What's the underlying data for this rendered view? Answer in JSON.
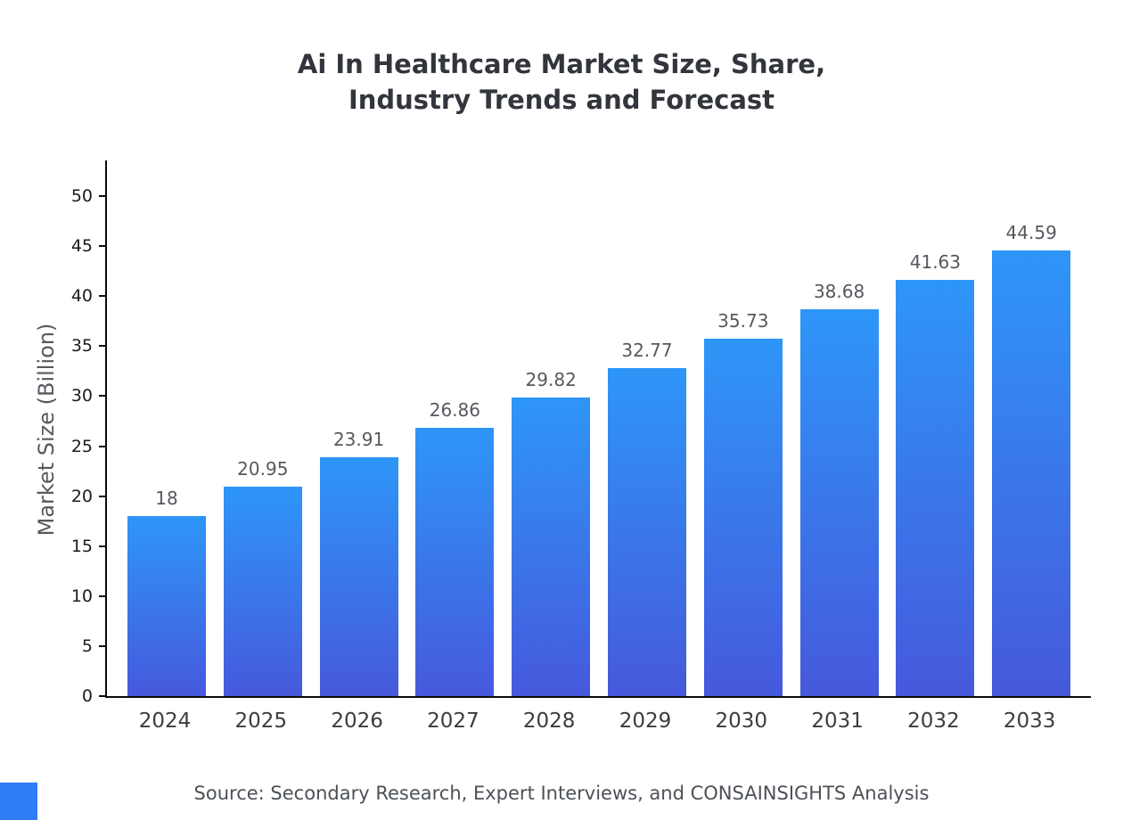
{
  "title": "Ai In Healthcare Market Size, Share,\nIndustry Trends and Forecast",
  "ylabel": "Market Size (Billion)",
  "source": "Source: Secondary Research, Expert Interviews, and CONSAINSIGHTS Analysis",
  "colors": {
    "bar_top": "#2e96f8",
    "bar_bottom": "#4659db",
    "brand_square": "#2e7cf6",
    "axis": "#0b0b0b"
  },
  "chart_data": {
    "type": "bar",
    "title": "Ai In Healthcare Market Size, Share, Industry Trends and Forecast",
    "categories": [
      "2024",
      "2025",
      "2026",
      "2027",
      "2028",
      "2029",
      "2030",
      "2031",
      "2032",
      "2033"
    ],
    "values": [
      18,
      20.95,
      23.91,
      26.86,
      29.82,
      32.77,
      35.73,
      38.68,
      41.63,
      44.59
    ],
    "value_labels": [
      "18",
      "20.95",
      "23.91",
      "26.86",
      "29.82",
      "32.77",
      "35.73",
      "38.68",
      "41.63",
      "44.59"
    ],
    "xlabel": "",
    "ylabel": "Market Size (Billion)",
    "ylim": [
      0,
      50
    ],
    "ytick_step": 5,
    "grid": false,
    "legend": false
  }
}
